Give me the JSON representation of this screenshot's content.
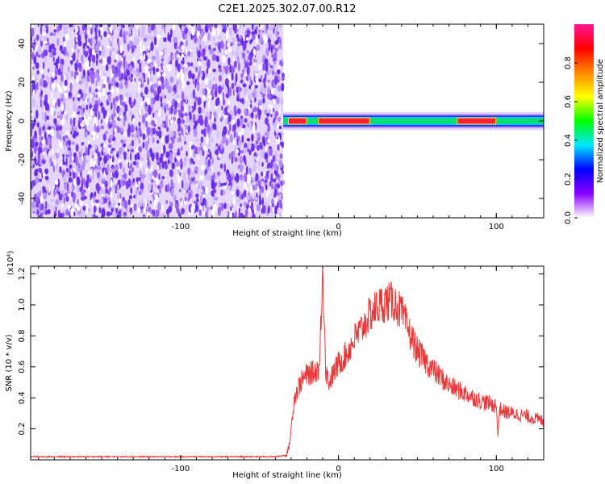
{
  "title": "C2E1.2025.302.07.00.R12",
  "colors": {
    "snr_line": "#e8393a",
    "noise": "#7a3df0",
    "background": "#ffffff"
  },
  "chart_data": [
    {
      "type": "heatmap",
      "xlabel": "Height of straight line (km)",
      "ylabel": "Frequency (Hz)",
      "xlim": [
        -195,
        130
      ],
      "ylim": [
        -50,
        50
      ],
      "xticks": [
        -100,
        0,
        100
      ],
      "xtick_labels": [
        "-100",
        "0",
        "100"
      ],
      "yticks": [
        -40,
        -20,
        0,
        20,
        40
      ],
      "ytick_labels": [
        "-40",
        "-20",
        "0",
        "20",
        "40"
      ],
      "noise_region_x": [
        -195,
        -35
      ],
      "signal_band": {
        "x_range": [
          -35,
          130
        ],
        "center_frequency": 0,
        "width_hz": 7,
        "peak_segments": [
          {
            "x": [
              -32,
              -20
            ],
            "amplitude": 1.0
          },
          {
            "x": [
              -13,
              20
            ],
            "amplitude": 1.0
          },
          {
            "x": [
              75,
              100
            ],
            "amplitude": 0.95
          }
        ]
      },
      "colorbar": {
        "label": "Normalized spectral amplitude",
        "range": [
          0,
          1
        ],
        "ticks": [
          0.0,
          0.2,
          0.4,
          0.6,
          0.8
        ],
        "tick_labels": [
          "0.0",
          "0.2",
          "0.4",
          "0.6",
          "0.8"
        ],
        "colormap": [
          "#ffffff",
          "#8a00ff",
          "#0000ff",
          "#00e6ff",
          "#00ff00",
          "#ffff00",
          "#ff8800",
          "#ff0000",
          "#ff1493"
        ]
      }
    },
    {
      "type": "line",
      "xlabel": "Height of straight line (km)",
      "ylabel": "SNR (10 * v/v)",
      "y_multiplier": "(x10⁴)",
      "xlim": [
        -195,
        130
      ],
      "ylim": [
        0,
        1.25
      ],
      "xticks": [
        -100,
        0,
        100
      ],
      "xtick_labels": [
        "-100",
        "0",
        "100"
      ],
      "yticks": [
        0.2,
        0.4,
        0.6,
        0.8,
        1.0,
        1.2
      ],
      "ytick_labels": [
        "0.2",
        "0.4",
        "0.6",
        "0.8",
        "1.0",
        "1.2"
      ],
      "series": [
        {
          "x": [
            -195,
            -150,
            -100,
            -60,
            -40,
            -33,
            -31,
            -28,
            -24,
            -20,
            -15,
            -12,
            -10,
            -8,
            -6,
            0,
            5,
            10,
            15,
            20,
            25,
            30,
            35,
            40,
            45,
            50,
            60,
            70,
            80,
            90,
            100,
            101,
            102,
            105,
            110,
            120,
            130
          ],
          "y": [
            0.02,
            0.02,
            0.02,
            0.02,
            0.02,
            0.03,
            0.1,
            0.4,
            0.5,
            0.55,
            0.57,
            0.6,
            1.25,
            0.58,
            0.5,
            0.62,
            0.68,
            0.78,
            0.85,
            0.94,
            0.99,
            1.02,
            1.02,
            0.95,
            0.82,
            0.7,
            0.58,
            0.48,
            0.43,
            0.38,
            0.35,
            0.15,
            0.33,
            0.31,
            0.3,
            0.28,
            0.25
          ]
        }
      ]
    }
  ]
}
